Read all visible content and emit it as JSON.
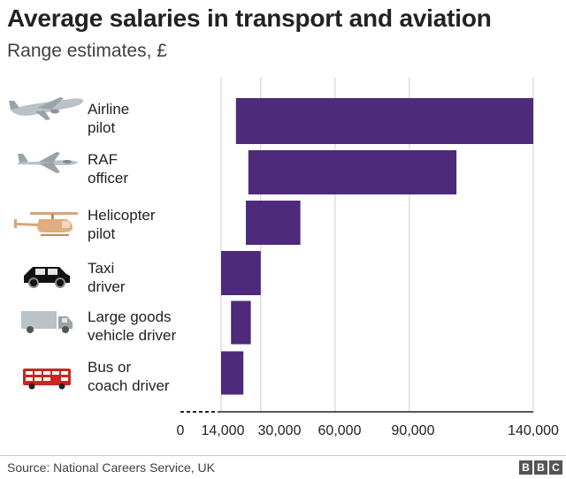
{
  "header": {
    "title": "Average salaries in transport and aviation",
    "subtitle": "Range estimates, £"
  },
  "footer": {
    "source": "Source: National Careers Service, UK",
    "logo": [
      "B",
      "B",
      "C"
    ]
  },
  "colors": {
    "bar": "#4d2a7a",
    "gridline": "#cccccc",
    "axis": "#222222"
  },
  "icons": [
    "airliner-icon",
    "jet-fighter-icon",
    "helicopter-icon",
    "taxi-icon",
    "truck-icon",
    "bus-icon"
  ],
  "chart_data": {
    "type": "bar",
    "orientation": "horizontal",
    "style": "floating-range",
    "title": "Average salaries in transport and aviation",
    "subtitle": "Range estimates, £",
    "categories": [
      [
        "Airline",
        "pilot"
      ],
      [
        "RAF",
        "officer"
      ],
      [
        "Helicopter",
        "pilot"
      ],
      [
        "Taxi",
        "driver"
      ],
      [
        "Large goods",
        "vehicle driver"
      ],
      [
        "Bus or",
        "coach driver"
      ]
    ],
    "series": [
      {
        "name": "min",
        "values": [
          20000,
          25000,
          24000,
          14000,
          18000,
          14000
        ]
      },
      {
        "name": "max",
        "values": [
          140000,
          109000,
          46000,
          30000,
          26000,
          23000
        ]
      }
    ],
    "xticks": [
      0,
      14000,
      30000,
      60000,
      90000,
      140000
    ],
    "xtick_labels": [
      "0",
      "14,000",
      "30,000",
      "60,000",
      "90,000",
      "140,000"
    ],
    "axis_break": "dashed segment between 0 and 14,000",
    "xlim": [
      0,
      140000
    ],
    "grid": true,
    "xlabel": "",
    "ylabel": ""
  }
}
